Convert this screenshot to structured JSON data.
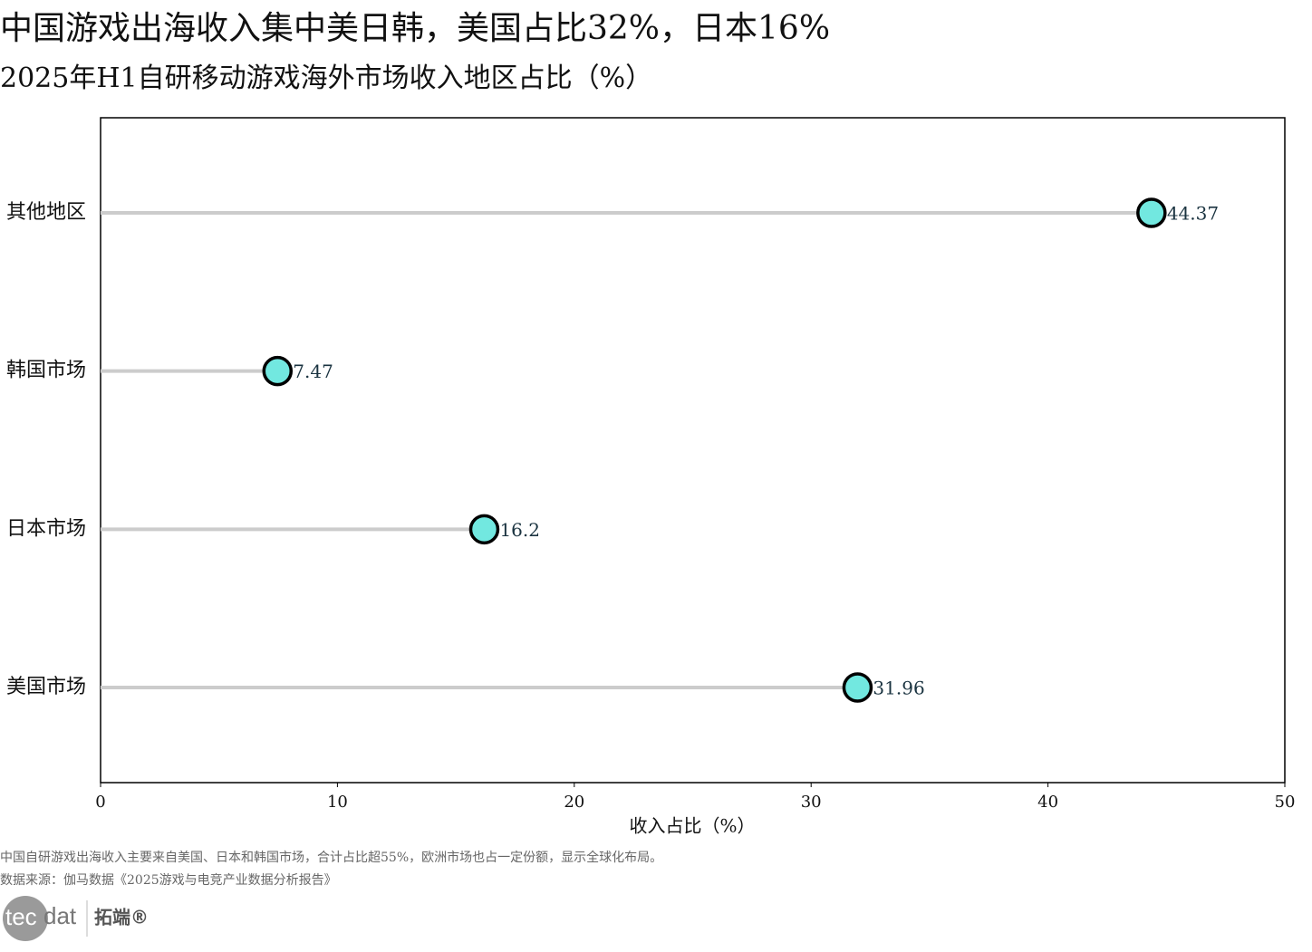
{
  "chart_data": {
    "type": "lollipop",
    "title": "中国游戏出海收入集中美日韩，美国占比32%，日本16%",
    "subtitle": "2025年H1自研移动游戏海外市场收入地区占比（%）",
    "x_label": "收入占比（%）",
    "categories": [
      "其他地区",
      "韩国市场",
      "日本市场",
      "美国市场"
    ],
    "values": [
      44.37,
      7.47,
      16.2,
      31.96
    ],
    "color": "#72e8e0",
    "stem_color": "#cccccc",
    "xlim": [
      0,
      50
    ],
    "xticks": [
      0,
      10,
      20,
      30,
      40,
      50
    ],
    "grid": false
  },
  "footer": {
    "note": "中国自研游戏出海收入主要来自美国、日本和韩国市场，合计占比超55%，欧洲市场也占一定份额，显示全球化布局。",
    "source": "数据来源：伽马数据《2025游戏与电竞产业数据分析报告》"
  },
  "logo": {
    "part1": "tec",
    "part2": "dat",
    "brand": "拓端®"
  }
}
